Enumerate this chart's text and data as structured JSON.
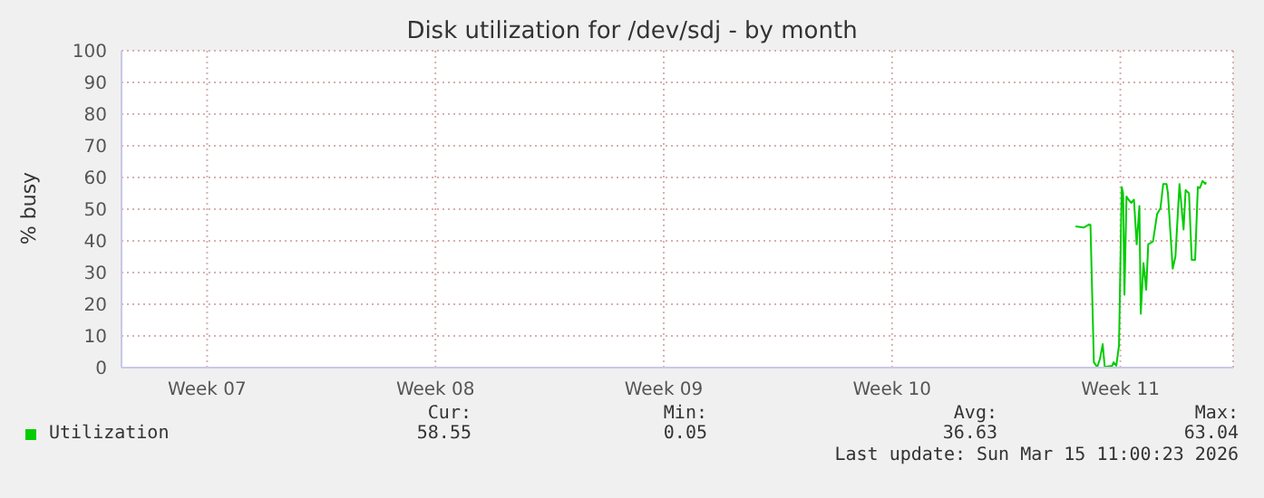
{
  "chart_data": {
    "type": "line",
    "title": "Disk utilization for /dev/sdj - by month",
    "ylabel": "% busy",
    "x": [
      "2026-03-11T11:00",
      "2026-03-11T17:00",
      "2026-03-11T21:00",
      "2026-03-11T22:00",
      "2026-03-12T00:30",
      "2026-03-12T03:00",
      "2026-03-12T05:00",
      "2026-03-12T07:00",
      "2026-03-12T08:30",
      "2026-03-12T14:00",
      "2026-03-12T15:00",
      "2026-03-12T17:00",
      "2026-03-12T19:00",
      "2026-03-12T21:00",
      "2026-03-12T22:00",
      "2026-03-12T23:00",
      "2026-03-13T00:30",
      "2026-03-13T02:00",
      "2026-03-13T04:00",
      "2026-03-13T06:00",
      "2026-03-13T08:00",
      "2026-03-13T10:00",
      "2026-03-13T11:00",
      "2026-03-13T13:00",
      "2026-03-13T15:00",
      "2026-03-13T16:30",
      "2026-03-13T20:00",
      "2026-03-13T23:00",
      "2026-03-14T01:30",
      "2026-03-14T03:30",
      "2026-03-14T06:00",
      "2026-03-14T07:00",
      "2026-03-14T10:30",
      "2026-03-14T12:30",
      "2026-03-14T15:30",
      "2026-03-14T18:30",
      "2026-03-14T20:00",
      "2026-03-14T22:30",
      "2026-03-15T00:30",
      "2026-03-15T03:00",
      "2026-03-15T05:00",
      "2026-03-15T06:30",
      "2026-03-15T08:30",
      "2026-03-15T10:30",
      "2026-03-15T11:00"
    ],
    "series": [
      {
        "name": "Utilization",
        "color": "#00cc00",
        "values": [
          44.6,
          44.2,
          45.2,
          45,
          1.7,
          0.2,
          2.8,
          7.4,
          0.2,
          0.6,
          1.7,
          0.6,
          7,
          57,
          55,
          23,
          54,
          53,
          52,
          53,
          38.9,
          51,
          17,
          33,
          24.6,
          38.9,
          39.8,
          48.4,
          50.3,
          57.9,
          57.9,
          55,
          31.2,
          35,
          57.9,
          43.6,
          56,
          55,
          34,
          34,
          57,
          56.7,
          58.9,
          58,
          58.5
        ]
      }
    ],
    "xlim": [
      "2026-02-10T05:00",
      "2026-03-16T07:00"
    ],
    "xticks": [
      {
        "value": "2026-02-12T20:00",
        "label": "Week 07"
      },
      {
        "value": "2026-02-19T20:00",
        "label": "Week 08"
      },
      {
        "value": "2026-02-26T20:00",
        "label": "Week 09"
      },
      {
        "value": "2026-03-05T20:00",
        "label": "Week 10"
      },
      {
        "value": "2026-03-12T20:00",
        "label": "Week 11"
      }
    ],
    "ylim": [
      0,
      100
    ],
    "yticks": [
      0,
      10,
      20,
      30,
      40,
      50,
      60,
      70,
      80,
      90,
      100
    ],
    "grid": true,
    "legend": "bottom",
    "annotations": [
      "Cur:",
      "58.55",
      "Min:",
      "0.05",
      "Avg:",
      "36.63",
      "Max:",
      "63.04",
      "Last update: Sun Mar 15 11:00:23 2026"
    ]
  }
}
